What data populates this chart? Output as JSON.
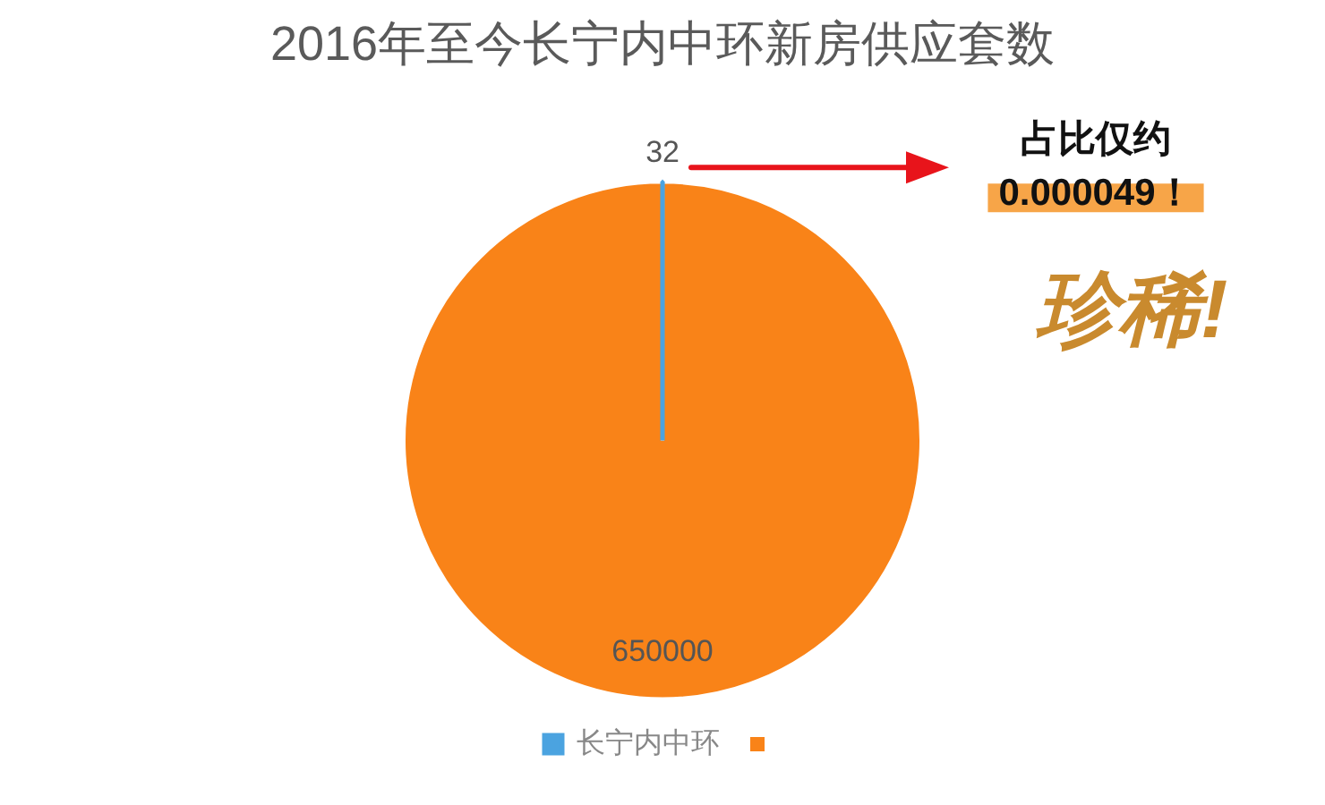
{
  "chart_data": {
    "type": "pie",
    "title": "2016年至今长宁内中环新房供应套数",
    "categories": [
      "长宁内中环",
      null
    ],
    "values": [
      32,
      650000
    ],
    "colors": [
      "#4ba3e0",
      "#f98318"
    ],
    "data_labels": true,
    "legend": "bottom",
    "annotations": [
      "占比仅约",
      "0.000049！",
      "珍稀!"
    ]
  }
}
